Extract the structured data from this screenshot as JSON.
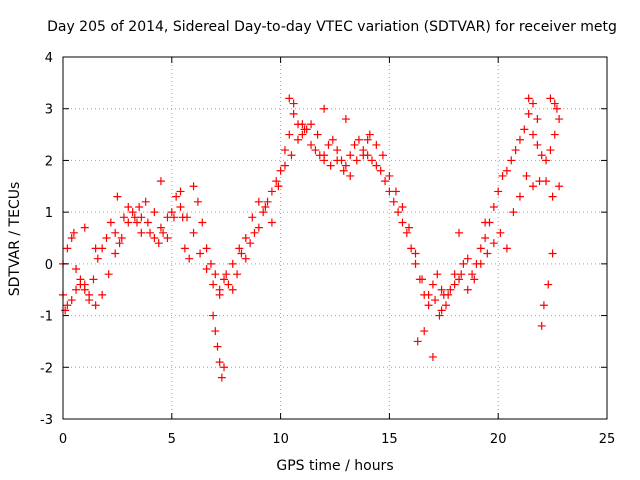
{
  "colors": {
    "series": "#ff0000",
    "grid": "#a0a0a0",
    "axis": "#000000",
    "background": "#ffffff"
  },
  "chart_data": {
    "type": "scatter",
    "title": "Day 205 of 2014, Sidereal Day-to-day VTEC variation (SDTVAR) for receiver metg",
    "xlabel": "GPS time / hours",
    "ylabel": "SDTVAR / TECUs",
    "xlim": [
      0,
      25
    ],
    "ylim": [
      -3,
      4
    ],
    "xticks": [
      "0",
      "5",
      "10",
      "15",
      "20",
      "25"
    ],
    "yticks": [
      "-3",
      "-2",
      "-1",
      "0",
      "1",
      "2",
      "3",
      "4"
    ],
    "grid": true,
    "marker": "+",
    "series": [
      {
        "name": "SDTVAR",
        "x": [
          0.0,
          0.2,
          0.4,
          0.6,
          0.8,
          1.0,
          1.2,
          1.4,
          1.6,
          1.8,
          2.0,
          2.2,
          2.4,
          2.6,
          2.8,
          3.0,
          3.2,
          3.4,
          3.6,
          3.8,
          4.0,
          4.2,
          4.4,
          4.6,
          4.8,
          5.0,
          5.2,
          5.4,
          5.6,
          5.8,
          6.0,
          6.2,
          6.4,
          6.6,
          6.8,
          7.0,
          7.2,
          7.4,
          7.6,
          7.8,
          8.0,
          8.2,
          8.4,
          8.6,
          8.8,
          9.0,
          9.2,
          9.4,
          9.6,
          9.8,
          10.0,
          10.2,
          10.4,
          10.6,
          10.8,
          11.0,
          11.2,
          11.4,
          11.6,
          11.8,
          12.0,
          12.2,
          12.4,
          12.6,
          12.8,
          13.0,
          13.2,
          13.4,
          13.6,
          13.8,
          14.0,
          14.2,
          14.4,
          14.6,
          14.8,
          15.0,
          15.2,
          15.4,
          15.6,
          15.8,
          16.0,
          16.2,
          16.4,
          16.6,
          16.8,
          17.0,
          17.2,
          17.4,
          17.6,
          17.8,
          18.0,
          18.2,
          18.4,
          18.6,
          18.8,
          19.0,
          19.2,
          19.4,
          19.6,
          19.8,
          20.0,
          20.2,
          20.4,
          20.6,
          20.8,
          21.0,
          21.2,
          21.4,
          21.6,
          21.8,
          22.0,
          22.2,
          22.4,
          22.6,
          22.8,
          0.0,
          0.2,
          0.4,
          0.6,
          0.8,
          1.0,
          1.2,
          1.5,
          1.8,
          2.1,
          2.4,
          2.7,
          3.0,
          3.3,
          3.6,
          3.9,
          4.2,
          4.5,
          4.8,
          5.1,
          5.4,
          5.7,
          6.0,
          6.3,
          6.6,
          6.9,
          7.2,
          7.5,
          7.8,
          8.1,
          8.4,
          8.7,
          9.0,
          9.3,
          9.6,
          9.9,
          10.2,
          10.5,
          10.8,
          11.1,
          11.4,
          11.7,
          12.0,
          12.3,
          12.6,
          12.9,
          13.2,
          13.5,
          13.8,
          14.1,
          14.4,
          14.7,
          15.0,
          15.3,
          15.6,
          15.9,
          16.2,
          16.5,
          16.8,
          17.1,
          17.4,
          17.7,
          18.0,
          18.3,
          18.6,
          18.9,
          19.2,
          19.5,
          19.8,
          20.1,
          20.4,
          20.7,
          21.0,
          21.3,
          21.6,
          21.9,
          22.2,
          22.5,
          22.8,
          0.1,
          0.5,
          1.0,
          1.5,
          2.5,
          3.5,
          4.5,
          5.5,
          6.9,
          7.0,
          7.1,
          7.2,
          7.3,
          7.4,
          10.4,
          10.6,
          11.0,
          12.0,
          13.0,
          14.0,
          16.3,
          16.6,
          17.0,
          17.3,
          17.5,
          18.2,
          19.4,
          21.4,
          21.6,
          21.8,
          22.0,
          22.1,
          22.3,
          22.5,
          22.7,
          22.6,
          22.4
        ],
        "y": [
          0.0,
          0.3,
          0.5,
          -0.1,
          -0.4,
          -0.5,
          -0.6,
          -0.3,
          0.1,
          0.3,
          0.5,
          0.8,
          0.6,
          0.4,
          0.9,
          1.1,
          1.0,
          0.8,
          0.9,
          1.2,
          0.6,
          0.5,
          0.4,
          0.6,
          0.9,
          1.0,
          1.3,
          1.1,
          0.3,
          0.1,
          1.5,
          1.2,
          0.8,
          0.3,
          0.0,
          -0.2,
          -0.5,
          -0.3,
          -0.4,
          -0.5,
          -0.2,
          0.2,
          0.1,
          0.4,
          0.6,
          0.7,
          1.0,
          1.2,
          1.4,
          1.6,
          1.8,
          2.2,
          2.5,
          2.9,
          2.7,
          2.5,
          2.6,
          2.3,
          2.2,
          2.1,
          2.0,
          2.3,
          2.4,
          2.2,
          2.0,
          1.9,
          2.1,
          2.3,
          2.4,
          2.2,
          2.1,
          2.0,
          1.9,
          1.8,
          1.6,
          1.4,
          1.2,
          1.0,
          0.8,
          0.6,
          0.3,
          0.0,
          -0.3,
          -0.6,
          -0.8,
          -0.4,
          -0.2,
          -0.5,
          -0.8,
          -0.5,
          -0.2,
          -0.3,
          0.0,
          0.1,
          -0.2,
          0.0,
          0.3,
          0.5,
          0.8,
          1.1,
          1.4,
          1.7,
          1.8,
          2.0,
          2.2,
          2.4,
          2.6,
          2.9,
          2.5,
          2.3,
          2.1,
          2.0,
          2.2,
          2.5,
          2.8,
          -0.6,
          -0.8,
          -0.7,
          -0.5,
          -0.3,
          -0.4,
          -0.7,
          -0.8,
          -0.6,
          -0.2,
          0.2,
          0.5,
          0.8,
          0.9,
          0.6,
          0.8,
          1.0,
          0.7,
          0.5,
          0.9,
          1.4,
          0.9,
          0.6,
          0.2,
          -0.1,
          -0.4,
          -0.6,
          -0.2,
          0.0,
          0.3,
          0.5,
          0.9,
          1.2,
          1.1,
          0.8,
          1.5,
          1.9,
          2.1,
          2.4,
          2.6,
          2.7,
          2.5,
          2.1,
          1.9,
          2.0,
          1.8,
          1.7,
          2.0,
          2.1,
          2.5,
          2.3,
          2.1,
          1.7,
          1.4,
          1.1,
          0.7,
          0.2,
          -0.3,
          -0.6,
          -0.7,
          -0.9,
          -0.6,
          -0.4,
          -0.2,
          -0.5,
          -0.3,
          0.0,
          0.2,
          0.4,
          0.6,
          0.3,
          1.0,
          1.3,
          1.7,
          1.5,
          1.6,
          1.6,
          1.3,
          1.5,
          -0.9,
          0.6,
          0.7,
          0.3,
          1.3,
          1.1,
          1.6,
          0.9,
          -1.0,
          -1.3,
          -1.6,
          -1.9,
          -2.2,
          -2.0,
          3.2,
          3.1,
          2.7,
          3.0,
          2.8,
          2.4,
          -1.5,
          -1.3,
          -1.8,
          -1.0,
          -0.6,
          0.6,
          0.8,
          3.2,
          3.1,
          2.8,
          -1.2,
          -0.8,
          -0.4,
          0.2,
          3.0,
          3.1,
          3.2
        ]
      }
    ]
  }
}
